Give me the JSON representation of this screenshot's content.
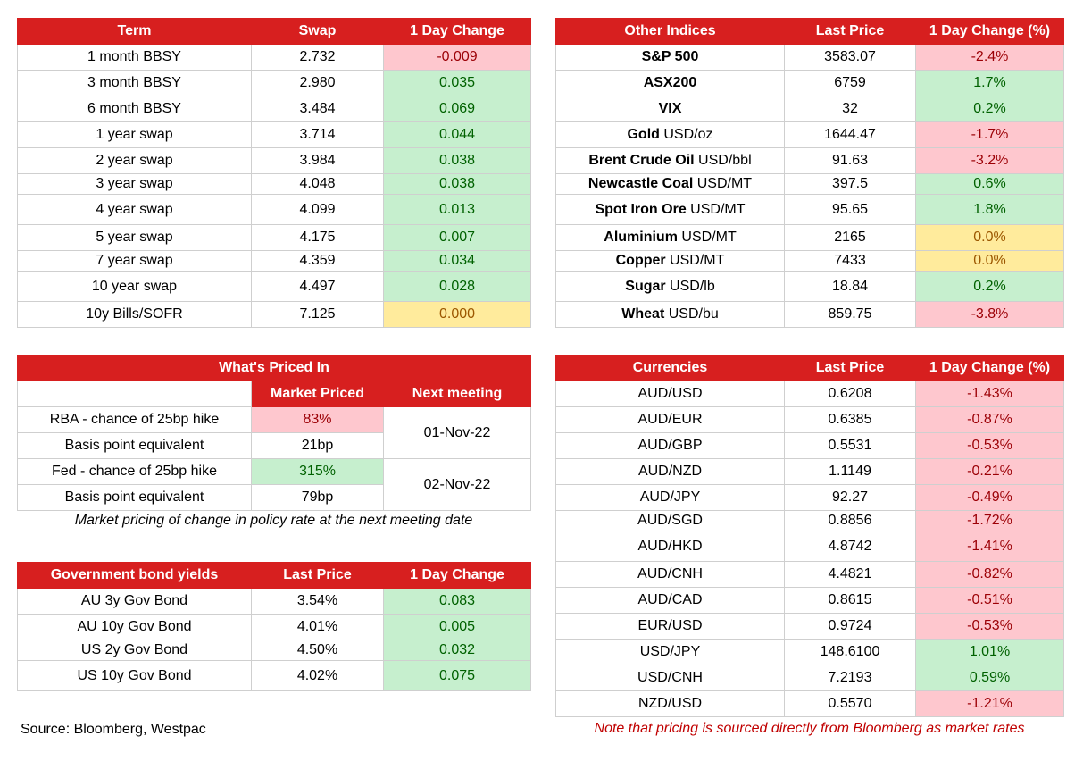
{
  "swap_table": {
    "headers": [
      "Term",
      "Swap",
      "1 Day Change"
    ],
    "rows": [
      {
        "term": "1 month BBSY",
        "swap": "2.732",
        "change": "-0.009",
        "status": "neg"
      },
      {
        "term": "3 month BBSY",
        "swap": "2.980",
        "change": "0.035",
        "status": "pos"
      },
      {
        "term": "6 month BBSY",
        "swap": "3.484",
        "change": "0.069",
        "status": "pos"
      },
      {
        "term": "1 year swap",
        "swap": "3.714",
        "change": "0.044",
        "status": "pos"
      },
      {
        "term": "2 year swap",
        "swap": "3.984",
        "change": "0.038",
        "status": "pos"
      },
      {
        "term": "3 year swap",
        "swap": "4.048",
        "change": "0.038",
        "status": "pos"
      },
      {
        "term": "4 year swap",
        "swap": "4.099",
        "change": "0.013",
        "status": "pos"
      },
      {
        "term": "5 year swap",
        "swap": "4.175",
        "change": "0.007",
        "status": "pos"
      },
      {
        "term": "7 year swap",
        "swap": "4.359",
        "change": "0.034",
        "status": "pos"
      },
      {
        "term": "10 year swap",
        "swap": "4.497",
        "change": "0.028",
        "status": "pos"
      },
      {
        "term": "10y Bills/SOFR",
        "swap": "7.125",
        "change": "0.000",
        "status": "neu"
      }
    ]
  },
  "indices_table": {
    "headers": [
      "Other Indices",
      "Last Price",
      "1 Day Change (%)"
    ],
    "rows": [
      {
        "name": "S&P 500",
        "unit": "",
        "price": "3583.07",
        "change": "-2.4%",
        "status": "neg"
      },
      {
        "name": "ASX200",
        "unit": "",
        "price": "6759",
        "change": "1.7%",
        "status": "pos"
      },
      {
        "name": "VIX",
        "unit": "",
        "price": "32",
        "change": "0.2%",
        "status": "pos"
      },
      {
        "name": "Gold",
        "unit": " USD/oz",
        "price": "1644.47",
        "change": "-1.7%",
        "status": "neg"
      },
      {
        "name": "Brent Crude Oil",
        "unit": " USD/bbl",
        "price": "91.63",
        "change": "-3.2%",
        "status": "neg"
      },
      {
        "name": "Newcastle Coal",
        "unit": " USD/MT",
        "price": "397.5",
        "change": "0.6%",
        "status": "pos"
      },
      {
        "name": "Spot Iron Ore",
        "unit": " USD/MT",
        "price": "95.65",
        "change": "1.8%",
        "status": "pos"
      },
      {
        "name": "Aluminium",
        "unit": " USD/MT",
        "price": "2165",
        "change": "0.0%",
        "status": "neu"
      },
      {
        "name": "Copper",
        "unit": " USD/MT",
        "price": "7433",
        "change": "0.0%",
        "status": "neu"
      },
      {
        "name": "Sugar",
        "unit": " USD/lb",
        "price": "18.84",
        "change": "0.2%",
        "status": "pos"
      },
      {
        "name": "Wheat",
        "unit": " USD/bu",
        "price": "859.75",
        "change": "-3.8%",
        "status": "neg"
      }
    ]
  },
  "priced_in": {
    "title": "What's Priced In",
    "col_market": "Market Priced",
    "col_next": "Next meeting",
    "rows": [
      {
        "label": "RBA - chance of 25bp hike",
        "value": "83%",
        "status": "neg"
      },
      {
        "label": "Basis point equivalent",
        "value": "21bp",
        "status": ""
      },
      {
        "label": "Fed - chance of 25bp hike",
        "value": "315%",
        "status": "pos"
      },
      {
        "label": "Basis point equivalent",
        "value": "79bp",
        "status": ""
      }
    ],
    "meetings": [
      "01-Nov-22",
      "02-Nov-22"
    ],
    "caption": "Market pricing of change in policy rate at the next meeting date"
  },
  "bonds_table": {
    "headers": [
      "Government bond yields",
      "Last Price",
      "1 Day Change"
    ],
    "rows": [
      {
        "name": "AU 3y Gov Bond",
        "price": "3.54%",
        "change": "0.083",
        "status": "pos"
      },
      {
        "name": "AU 10y Gov Bond",
        "price": "4.01%",
        "change": "0.005",
        "status": "pos"
      },
      {
        "name": "US 2y Gov Bond",
        "price": "4.50%",
        "change": "0.032",
        "status": "pos"
      },
      {
        "name": "US 10y Gov Bond",
        "price": "4.02%",
        "change": "0.075",
        "status": "pos"
      }
    ]
  },
  "currencies_table": {
    "headers": [
      "Currencies",
      "Last Price",
      "1 Day Change (%)"
    ],
    "rows": [
      {
        "pair": "AUD/USD",
        "price": "0.6208",
        "change": "-1.43%",
        "status": "neg"
      },
      {
        "pair": "AUD/EUR",
        "price": "0.6385",
        "change": "-0.87%",
        "status": "neg"
      },
      {
        "pair": "AUD/GBP",
        "price": "0.5531",
        "change": "-0.53%",
        "status": "neg"
      },
      {
        "pair": "AUD/NZD",
        "price": "1.1149",
        "change": "-0.21%",
        "status": "neg"
      },
      {
        "pair": "AUD/JPY",
        "price": "92.27",
        "change": "-0.49%",
        "status": "neg"
      },
      {
        "pair": "AUD/SGD",
        "price": "0.8856",
        "change": "-1.72%",
        "status": "neg"
      },
      {
        "pair": "AUD/HKD",
        "price": "4.8742",
        "change": "-1.41%",
        "status": "neg"
      },
      {
        "pair": "AUD/CNH",
        "price": "4.4821",
        "change": "-0.82%",
        "status": "neg"
      },
      {
        "pair": "AUD/CAD",
        "price": "0.8615",
        "change": "-0.51%",
        "status": "neg"
      },
      {
        "pair": "EUR/USD",
        "price": "0.9724",
        "change": "-0.53%",
        "status": "neg"
      },
      {
        "pair": "USD/JPY",
        "price": "148.6100",
        "change": "1.01%",
        "status": "pos"
      },
      {
        "pair": "USD/CNH",
        "price": "7.2193",
        "change": "0.59%",
        "status": "pos"
      },
      {
        "pair": "NZD/USD",
        "price": "0.5570",
        "change": "-1.21%",
        "status": "neg"
      }
    ]
  },
  "footer": {
    "source": "Source: Bloomberg, Westpac",
    "note": "Note that pricing is sourced directly from Bloomberg as market rates"
  },
  "colors": {
    "header_red": "#d71f1f",
    "negative_fill": "#fec7ce",
    "positive_fill": "#c6efce",
    "neutral_fill": "#ffeb9c"
  }
}
